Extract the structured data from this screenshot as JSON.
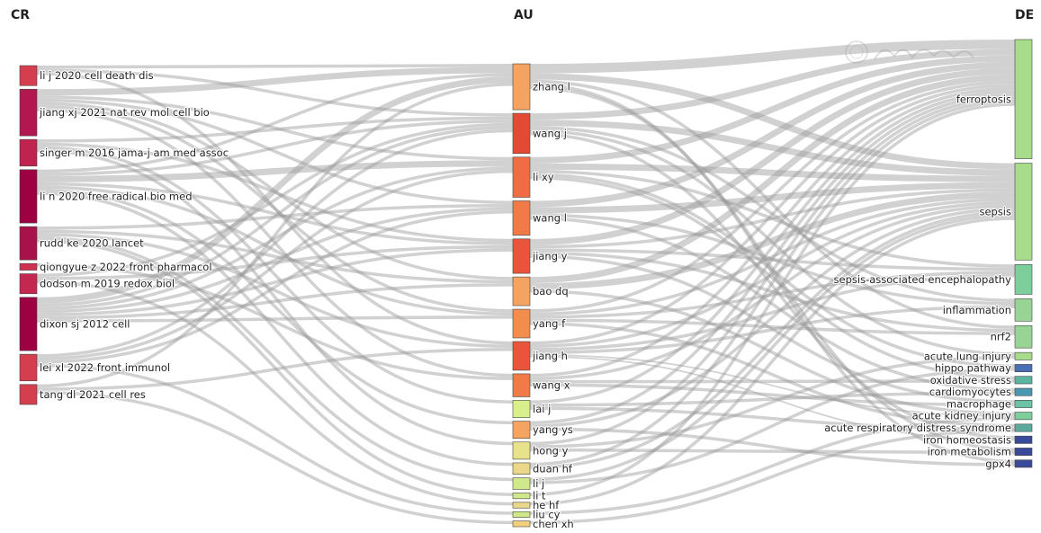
{
  "chart_data": {
    "type": "sankey",
    "columns": [
      {
        "key": "CR",
        "title": "CR"
      },
      {
        "key": "AU",
        "title": "AU"
      },
      {
        "key": "DE",
        "title": "DE"
      }
    ],
    "nodes": {
      "CR": [
        {
          "name": "li j 2020 cell death dis",
          "weight": 3,
          "color": "#d53e4f"
        },
        {
          "name": "jiang xj 2021 nat rev mol cell bio",
          "weight": 7,
          "color": "#b2184f"
        },
        {
          "name": "singer m 2016 jama-j am med assoc",
          "weight": 4,
          "color": "#c0234f"
        },
        {
          "name": "li n 2020 free radical bio med",
          "weight": 8,
          "color": "#9e0142"
        },
        {
          "name": "rudd ke 2020 lancet",
          "weight": 5,
          "color": "#a8124a"
        },
        {
          "name": "qiongyue z 2022 front pharmacol",
          "weight": 1,
          "color": "#d0304f"
        },
        {
          "name": "dodson m 2019 redox biol",
          "weight": 3,
          "color": "#c42850"
        },
        {
          "name": "dixon sj 2012 cell",
          "weight": 8,
          "color": "#9e0142"
        },
        {
          "name": "lei xl 2022 front immunol",
          "weight": 4,
          "color": "#d53e4f"
        },
        {
          "name": "tang dl 2021 cell res",
          "weight": 3,
          "color": "#d53e4f"
        }
      ],
      "AU": [
        {
          "name": "zhang l",
          "weight": 8,
          "color": "#f4a460"
        },
        {
          "name": "wang j",
          "weight": 7,
          "color": "#e34a33"
        },
        {
          "name": "li xy",
          "weight": 7,
          "color": "#f06c45"
        },
        {
          "name": "wang l",
          "weight": 6,
          "color": "#f07a48"
        },
        {
          "name": "jiang y",
          "weight": 6,
          "color": "#e9543a"
        },
        {
          "name": "bao dq",
          "weight": 5,
          "color": "#f4a460"
        },
        {
          "name": "yang f",
          "weight": 5,
          "color": "#f38d4e"
        },
        {
          "name": "jiang h",
          "weight": 5,
          "color": "#e9543a"
        },
        {
          "name": "wang x",
          "weight": 4,
          "color": "#f07a48"
        },
        {
          "name": "lai j",
          "weight": 3,
          "color": "#d9ef8b"
        },
        {
          "name": "yang ys",
          "weight": 3,
          "color": "#f4a460"
        },
        {
          "name": "hong y",
          "weight": 3,
          "color": "#e8e28a"
        },
        {
          "name": "duan hf",
          "weight": 2,
          "color": "#ead78a"
        },
        {
          "name": "li j",
          "weight": 2,
          "color": "#cfe98a"
        },
        {
          "name": "li t",
          "weight": 1,
          "color": "#cfe98a"
        },
        {
          "name": "he hf",
          "weight": 1,
          "color": "#ead78a"
        },
        {
          "name": "liu cy",
          "weight": 1,
          "color": "#cfe98a"
        },
        {
          "name": "chen xh",
          "weight": 1,
          "color": "#f2d07a"
        }
      ],
      "DE": [
        {
          "name": "ferroptosis",
          "weight": 16,
          "color": "#a6dc8a"
        },
        {
          "name": "sepsis",
          "weight": 13,
          "color": "#a6dc8a"
        },
        {
          "name": "sepsis-associated encephalopathy",
          "weight": 4,
          "color": "#7ccf9a"
        },
        {
          "name": "inflammation",
          "weight": 3,
          "color": "#98d594"
        },
        {
          "name": "nrf2",
          "weight": 3,
          "color": "#98d594"
        },
        {
          "name": "acute lung injury",
          "weight": 1,
          "color": "#a6dc8a"
        },
        {
          "name": "hippo pathway",
          "weight": 1,
          "color": "#4a6fb5"
        },
        {
          "name": "oxidative stress",
          "weight": 1,
          "color": "#5ab4a0"
        },
        {
          "name": "cardiomyocytes",
          "weight": 1,
          "color": "#4a98b0"
        },
        {
          "name": "macrophage",
          "weight": 1,
          "color": "#6cc4a4"
        },
        {
          "name": "acute kidney injury",
          "weight": 1,
          "color": "#7ccf9a"
        },
        {
          "name": "acute respiratory distress syndrome",
          "weight": 1,
          "color": "#5aaa9e"
        },
        {
          "name": "iron homeostasis",
          "weight": 1,
          "color": "#3a4a9a"
        },
        {
          "name": "iron metabolism",
          "weight": 1,
          "color": "#3a4a9a"
        },
        {
          "name": "gpx4",
          "weight": 1,
          "color": "#3a4a9a"
        }
      ]
    },
    "links_cr_au": [
      [
        "li j 2020 cell death dis",
        "zhang l",
        1
      ],
      [
        "li j 2020 cell death dis",
        "wang j",
        1
      ],
      [
        "li j 2020 cell death dis",
        "jiang h",
        1
      ],
      [
        "jiang xj 2021 nat rev mol cell bio",
        "zhang l",
        2
      ],
      [
        "jiang xj 2021 nat rev mol cell bio",
        "li xy",
        1
      ],
      [
        "jiang xj 2021 nat rev mol cell bio",
        "wang l",
        1
      ],
      [
        "jiang xj 2021 nat rev mol cell bio",
        "bao dq",
        1
      ],
      [
        "jiang xj 2021 nat rev mol cell bio",
        "yang f",
        1
      ],
      [
        "jiang xj 2021 nat rev mol cell bio",
        "wang x",
        1
      ],
      [
        "singer m 2016 jama-j am med assoc",
        "wang j",
        1
      ],
      [
        "singer m 2016 jama-j am med assoc",
        "jiang y",
        1
      ],
      [
        "singer m 2016 jama-j am med assoc",
        "lai j",
        1
      ],
      [
        "singer m 2016 jama-j am med assoc",
        "hong y",
        1
      ],
      [
        "li n 2020 free radical bio med",
        "zhang l",
        1
      ],
      [
        "li n 2020 free radical bio med",
        "wang j",
        1
      ],
      [
        "li n 2020 free radical bio med",
        "li xy",
        2
      ],
      [
        "li n 2020 free radical bio med",
        "jiang y",
        1
      ],
      [
        "li n 2020 free radical bio med",
        "yang f",
        1
      ],
      [
        "li n 2020 free radical bio med",
        "yang ys",
        1
      ],
      [
        "li n 2020 free radical bio med",
        "duan hf",
        1
      ],
      [
        "rudd ke 2020 lancet",
        "wang l",
        1
      ],
      [
        "rudd ke 2020 lancet",
        "bao dq",
        1
      ],
      [
        "rudd ke 2020 lancet",
        "jiang h",
        1
      ],
      [
        "rudd ke 2020 lancet",
        "li j",
        1
      ],
      [
        "rudd ke 2020 lancet",
        "li t",
        1
      ],
      [
        "qiongyue z 2022 front pharmacol",
        "wang x",
        1
      ],
      [
        "dodson m 2019 redox biol",
        "wang j",
        1
      ],
      [
        "dodson m 2019 redox biol",
        "jiang y",
        1
      ],
      [
        "dodson m 2019 redox biol",
        "he hf",
        1
      ],
      [
        "dixon sj 2012 cell",
        "zhang l",
        2
      ],
      [
        "dixon sj 2012 cell",
        "wang j",
        1
      ],
      [
        "dixon sj 2012 cell",
        "li xy",
        1
      ],
      [
        "dixon sj 2012 cell",
        "wang l",
        1
      ],
      [
        "dixon sj 2012 cell",
        "jiang y",
        1
      ],
      [
        "dixon sj 2012 cell",
        "bao dq",
        1
      ],
      [
        "dixon sj 2012 cell",
        "yang f",
        1
      ],
      [
        "lei xl 2022 front immunol",
        "wang j",
        1
      ],
      [
        "lei xl 2022 front immunol",
        "li xy",
        1
      ],
      [
        "lei xl 2022 front immunol",
        "wang l",
        1
      ],
      [
        "lei xl 2022 front immunol",
        "liu cy",
        1
      ],
      [
        "tang dl 2021 cell res",
        "zhang l",
        1
      ],
      [
        "tang dl 2021 cell res",
        "jiang h",
        1
      ],
      [
        "tang dl 2021 cell res",
        "chen xh",
        1
      ]
    ],
    "links_au_de": [
      [
        "zhang l",
        "ferroptosis",
        3
      ],
      [
        "zhang l",
        "sepsis",
        2
      ],
      [
        "zhang l",
        "nrf2",
        1
      ],
      [
        "zhang l",
        "gpx4",
        1
      ],
      [
        "zhang l",
        "iron metabolism",
        1
      ],
      [
        "wang j",
        "ferroptosis",
        2
      ],
      [
        "wang j",
        "sepsis",
        2
      ],
      [
        "wang j",
        "inflammation",
        1
      ],
      [
        "wang j",
        "acute lung injury",
        1
      ],
      [
        "wang j",
        "iron homeostasis",
        1
      ],
      [
        "li xy",
        "ferroptosis",
        2
      ],
      [
        "li xy",
        "sepsis",
        2
      ],
      [
        "li xy",
        "sepsis-associated encephalopathy",
        1
      ],
      [
        "li xy",
        "hippo pathway",
        1
      ],
      [
        "li xy",
        "oxidative stress",
        1
      ],
      [
        "wang l",
        "ferroptosis",
        2
      ],
      [
        "wang l",
        "sepsis",
        2
      ],
      [
        "wang l",
        "inflammation",
        1
      ],
      [
        "wang l",
        "cardiomyocytes",
        1
      ],
      [
        "jiang y",
        "ferroptosis",
        2
      ],
      [
        "jiang y",
        "sepsis",
        1
      ],
      [
        "jiang y",
        "sepsis-associated encephalopathy",
        1
      ],
      [
        "jiang y",
        "nrf2",
        1
      ],
      [
        "jiang y",
        "macrophage",
        1
      ],
      [
        "bao dq",
        "ferroptosis",
        2
      ],
      [
        "bao dq",
        "sepsis",
        2
      ],
      [
        "bao dq",
        "acute kidney injury",
        1
      ],
      [
        "yang f",
        "ferroptosis",
        1
      ],
      [
        "yang f",
        "sepsis",
        1
      ],
      [
        "yang f",
        "sepsis-associated encephalopathy",
        1
      ],
      [
        "yang f",
        "nrf2",
        1
      ],
      [
        "yang f",
        "acute respiratory distress syndrome",
        1
      ],
      [
        "jiang h",
        "ferroptosis",
        1
      ],
      [
        "jiang h",
        "sepsis",
        1
      ],
      [
        "jiang h",
        "sepsis-associated encephalopathy",
        1
      ],
      [
        "jiang h",
        "inflammation",
        1
      ],
      [
        "jiang h",
        "acute kidney injury",
        0.5
      ],
      [
        "jiang h",
        "iron homeostasis",
        0.5
      ],
      [
        "wang x",
        "ferroptosis",
        1
      ],
      [
        "wang x",
        "sepsis",
        1
      ],
      [
        "wang x",
        "oxidative stress",
        1
      ],
      [
        "wang x",
        "macrophage",
        1
      ],
      [
        "lai j",
        "ferroptosis",
        1
      ],
      [
        "lai j",
        "cardiomyocytes",
        1
      ],
      [
        "lai j",
        "acute respiratory distress syndrome",
        1
      ],
      [
        "yang ys",
        "ferroptosis",
        1
      ],
      [
        "yang ys",
        "sepsis",
        1
      ],
      [
        "yang ys",
        "gpx4",
        1
      ],
      [
        "hong y",
        "ferroptosis",
        1
      ],
      [
        "hong y",
        "acute lung injury",
        1
      ],
      [
        "hong y",
        "iron metabolism",
        1
      ],
      [
        "duan hf",
        "ferroptosis",
        1
      ],
      [
        "duan hf",
        "sepsis",
        1
      ],
      [
        "li j",
        "sepsis",
        1
      ],
      [
        "li j",
        "hippo pathway",
        1
      ],
      [
        "li t",
        "ferroptosis",
        1
      ],
      [
        "he hf",
        "sepsis",
        1
      ],
      [
        "liu cy",
        "acute kidney injury",
        1
      ],
      [
        "chen xh",
        "acute respiratory distress syndrome",
        1
      ]
    ]
  }
}
